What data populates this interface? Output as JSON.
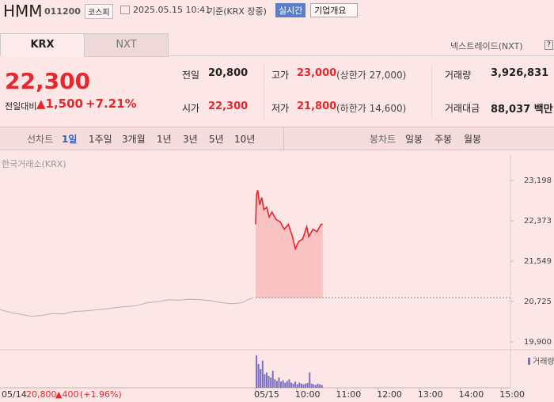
{
  "header": {
    "name": "HMM",
    "code": "011200",
    "market": "코스피",
    "timestamp": "2025.05.15 10:41",
    "basis": "기준(KRX 장중)",
    "realtime": "실시간",
    "company_info": "기업개요"
  },
  "tabs": [
    "KRX",
    "NXT"
  ],
  "nxt_link": "넥스트레이드(NXT)",
  "help": "?",
  "price": {
    "current": "22,300",
    "change_label": "전일대비",
    "change": "▲1,500",
    "change_pct": "+7.21%"
  },
  "stats": [
    [
      {
        "label": "전일",
        "value": "20,800"
      },
      {
        "label": "고가",
        "value": "23,000",
        "note": "(상한가 27,000)"
      },
      {
        "label": "거래량",
        "value": "3,926,831"
      }
    ],
    [
      {
        "label": "시가",
        "value": "22,300"
      },
      {
        "label": "저가",
        "value": "21,800",
        "note": "(하한가 14,600)"
      },
      {
        "label": "거래대금",
        "value": "88,037 백만"
      }
    ]
  ],
  "toolbar": {
    "line_chart": "선차트",
    "periods": [
      "1일",
      "1주일",
      "3개월",
      "1년",
      "3년",
      "5년",
      "10년"
    ],
    "candle_chart": "봉차트",
    "candle_periods": [
      "일봉",
      "주봉",
      "월봉"
    ]
  },
  "chart_data": {
    "type": "line",
    "source_label": "한국거래소(KRX)",
    "volume_label": "거래량",
    "xlim": [
      -6.25,
      6.23
    ],
    "ylim": [
      19770,
      23650
    ],
    "yticks": [
      {
        "value": 23198,
        "label": "23,198"
      },
      {
        "value": 22373,
        "label": "22,373"
      },
      {
        "value": 21549,
        "label": "21,549"
      },
      {
        "value": 20725,
        "label": "20,725"
      },
      {
        "value": 19900,
        "label": "19,900"
      }
    ],
    "xticks": [
      {
        "value": 0,
        "label": "05/15"
      },
      {
        "value": 1,
        "label": "10:00"
      },
      {
        "value": 2,
        "label": "11:00"
      },
      {
        "value": 3,
        "label": "12:00"
      },
      {
        "value": 4,
        "label": "13:00"
      },
      {
        "value": 5,
        "label": "14:00"
      },
      {
        "value": 6,
        "label": "15:00"
      }
    ],
    "baseline": 20800,
    "grid": false,
    "series": [
      {
        "color": "#b8b0b0",
        "x": [
          -6.25,
          -6.0,
          -5.74,
          -5.47,
          -5.22,
          -4.97,
          -4.7,
          -4.45,
          -4.2,
          -3.93,
          -3.68,
          -3.42,
          -3.15,
          -2.9,
          -2.65,
          -2.38,
          -2.13,
          -1.88,
          -1.61,
          -1.35,
          -1.1,
          -0.83,
          -0.58,
          -0.33,
          -0.19,
          -0.06
        ],
        "values": [
          20560,
          20500,
          20460,
          20420,
          20440,
          20480,
          20470,
          20520,
          20530,
          20550,
          20570,
          20600,
          20620,
          20640,
          20700,
          20720,
          20760,
          20750,
          20770,
          20760,
          20740,
          20700,
          20680,
          20700,
          20760,
          20800
        ]
      },
      {
        "color": "#e8262c",
        "fill": true,
        "x": [
          0,
          0.02,
          0.05,
          0.1,
          0.15,
          0.2,
          0.27,
          0.33,
          0.4,
          0.5,
          0.6,
          0.7,
          0.8,
          0.9,
          0.97,
          1.05,
          1.15,
          1.25,
          1.3,
          1.4,
          1.5,
          1.6,
          1.64
        ],
        "values": [
          22300,
          22900,
          23000,
          22700,
          22850,
          22600,
          22650,
          22450,
          22550,
          22400,
          22350,
          22200,
          22300,
          22050,
          21800,
          21950,
          22000,
          22250,
          22050,
          22200,
          22150,
          22300,
          22300
        ]
      }
    ],
    "volume": {
      "color": "#7b6fc4",
      "ylim": [
        0,
        100
      ],
      "x": [
        0.02,
        0.07,
        0.12,
        0.17,
        0.22,
        0.27,
        0.32,
        0.37,
        0.42,
        0.47,
        0.52,
        0.57,
        0.62,
        0.67,
        0.72,
        0.77,
        0.82,
        0.87,
        0.92,
        0.97,
        1.02,
        1.07,
        1.12,
        1.17,
        1.22,
        1.27,
        1.32,
        1.37,
        1.42,
        1.47,
        1.52,
        1.57,
        1.62
      ],
      "values": [
        95,
        70,
        55,
        80,
        40,
        45,
        35,
        30,
        50,
        25,
        20,
        30,
        18,
        22,
        15,
        20,
        25,
        15,
        12,
        18,
        10,
        15,
        12,
        10,
        12,
        14,
        45,
        12,
        10,
        8,
        12,
        10,
        8
      ]
    },
    "prev_day": {
      "date": "05/14",
      "close": "20,800",
      "change": "▲400",
      "change_pct": "(+1.96%)"
    }
  }
}
